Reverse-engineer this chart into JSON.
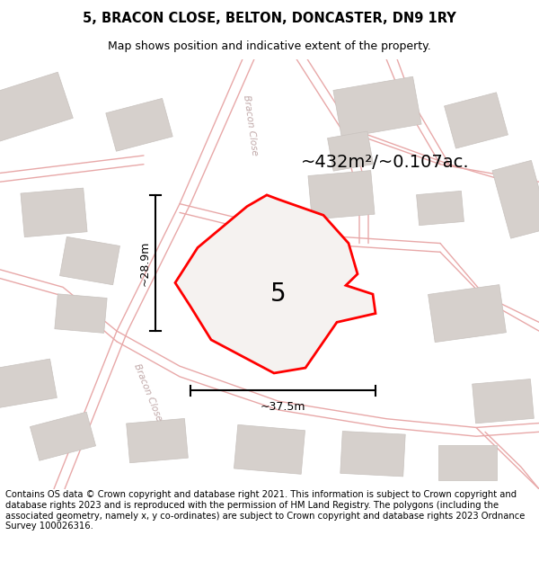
{
  "title": "5, BRACON CLOSE, BELTON, DONCASTER, DN9 1RY",
  "subtitle": "Map shows position and indicative extent of the property.",
  "footer": "Contains OS data © Crown copyright and database right 2021. This information is subject to Crown copyright and database rights 2023 and is reproduced with the permission of HM Land Registry. The polygons (including the associated geometry, namely x, y co-ordinates) are subject to Crown copyright and database rights 2023 Ordnance Survey 100026316.",
  "area_label": "~432m²/~0.107ac.",
  "width_label": "~37.5m",
  "height_label": "~28.9m",
  "property_number": "5",
  "map_bg": "#f7f4f2",
  "road_color": "#e8a8a8",
  "border_color": "#ff0000",
  "building_color": "#d6d0cc",
  "building_edge": "#c8c2be",
  "street_label_color": "#c0a8a8",
  "title_fontsize": 10.5,
  "subtitle_fontsize": 9,
  "footer_fontsize": 7.2,
  "area_fontsize": 14,
  "number_fontsize": 20,
  "dim_fontsize": 9
}
